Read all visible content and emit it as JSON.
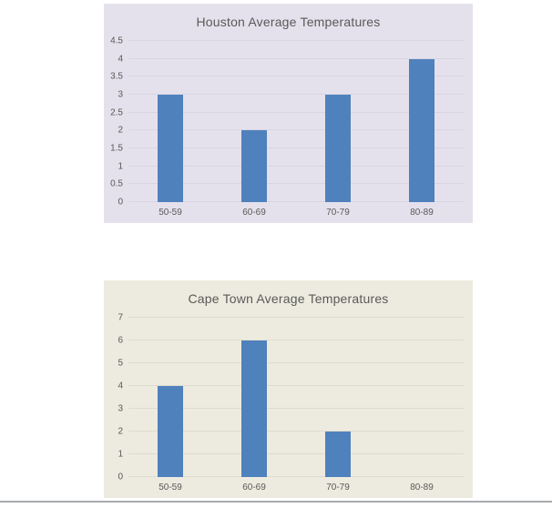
{
  "page": {
    "background": "#ffffff",
    "divider_color": "#a8abaf"
  },
  "chart_data": [
    {
      "type": "bar",
      "title": "Houston Average Temperatures",
      "categories": [
        "50-59",
        "60-69",
        "70-79",
        "80-89"
      ],
      "values": [
        3,
        2,
        3,
        4
      ],
      "xlabel": "",
      "ylabel": "",
      "ylim": [
        0,
        4.5
      ],
      "ytick_step": 0.5,
      "yticks": [
        "0",
        "0.5",
        "1",
        "1.5",
        "2",
        "2.5",
        "3",
        "3.5",
        "4",
        "4.5"
      ],
      "grid": true,
      "legend": false,
      "colors": {
        "background": "#e5e1ec",
        "gridline": "#d8d4e1",
        "bar": "#4f81bd",
        "text": "#595959"
      }
    },
    {
      "type": "bar",
      "title": "Cape Town Average Temperatures",
      "categories": [
        "50-59",
        "60-69",
        "70-79",
        "80-89"
      ],
      "values": [
        4,
        6,
        2,
        0
      ],
      "xlabel": "",
      "ylabel": "",
      "ylim": [
        0,
        7
      ],
      "ytick_step": 1,
      "yticks": [
        "0",
        "1",
        "2",
        "3",
        "4",
        "5",
        "6",
        "7"
      ],
      "grid": true,
      "legend": false,
      "colors": {
        "background": "#edebdf",
        "gridline": "#dedccf",
        "bar": "#4f81bd",
        "text": "#595959"
      }
    }
  ]
}
